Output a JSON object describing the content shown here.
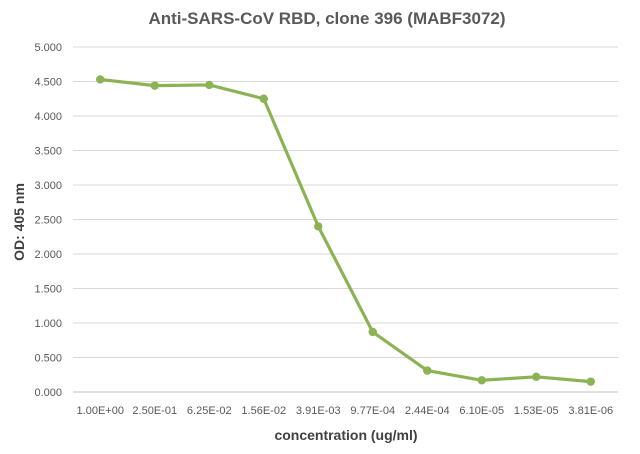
{
  "chart_data": {
    "type": "line",
    "title": "Anti-SARS-CoV RBD, clone 396 (MABF3072)",
    "xlabel": "concentration (ug/ml)",
    "ylabel": "OD: 405 nm",
    "categories": [
      "1.00E+00",
      "2.50E-01",
      "6.25E-02",
      "1.56E-02",
      "3.91E-03",
      "9.77E-04",
      "2.44E-04",
      "6.10E-05",
      "1.53E-05",
      "3.81E-06"
    ],
    "series": [
      {
        "values": [
          4.53,
          4.44,
          4.45,
          4.25,
          2.4,
          0.87,
          0.31,
          0.17,
          0.22,
          0.15
        ],
        "color": "#8cb353"
      }
    ],
    "ylim": [
      0,
      5
    ],
    "yticks": [
      "0.000",
      "0.500",
      "1.000",
      "1.500",
      "2.000",
      "2.500",
      "3.000",
      "3.500",
      "4.000",
      "4.500",
      "5.000"
    ],
    "grid": true,
    "legend": "none"
  }
}
